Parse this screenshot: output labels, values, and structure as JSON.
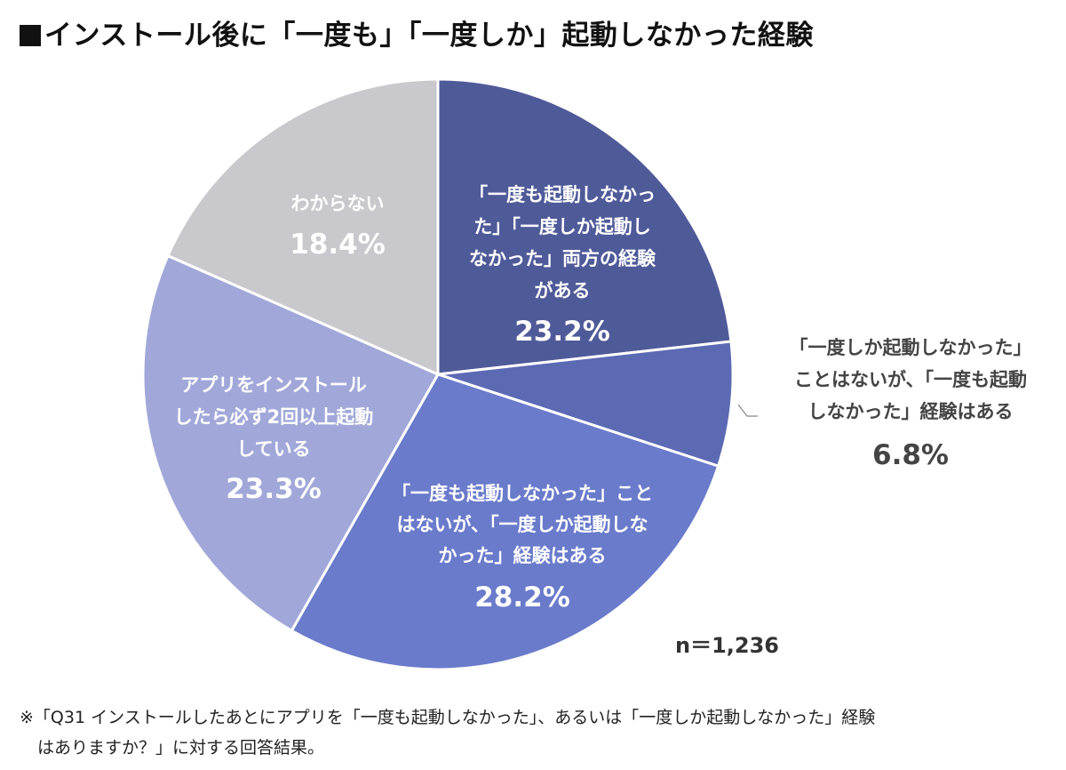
{
  "title": "インストール後に「一度も」「一度しか」起動しなかった経験",
  "sample_size": "n＝1,236",
  "footnote": {
    "line1": "※「Q31 インストールしたあとにアプリを「一度も起動しなかった」、あるいは「一度しか起動しなかった」経験",
    "line2": "はありますか？」に対する回答結果。"
  },
  "colors": {
    "both": "#4f5a99",
    "only_once_never_not": "#5c6ab4",
    "never_not_once": "#6a7bcb",
    "twice_or_more": "#a1a8d9",
    "unknown": "#c9c9cd"
  },
  "chart_data": {
    "type": "pie",
    "title": "インストール後に「一度も」「一度しか」起動しなかった経験",
    "start": "12 o'clock, clockwise",
    "slices": [
      {
        "label": "「一度も起動しなかった」「一度しか起動しなかった」両方の経験がある",
        "label_lines": [
          "「一度も起動しなかっ",
          "た」「一度しか起動し",
          "なかった」両方の経験",
          "がある"
        ],
        "value": 23.2,
        "value_label": "23.2%",
        "color": "#4f5a99",
        "label_position": "inside",
        "text_color": "#ffffff"
      },
      {
        "label": "「一度しか起動しなかった」ことはないが、「一度も起動しなかった」経験はある",
        "label_lines": [
          "「一度しか起動しなかった」",
          "ことはないが、「一度も起動",
          "しなかった」経験はある"
        ],
        "value": 6.8,
        "value_label": "6.8%",
        "color": "#5c6ab4",
        "label_position": "outside",
        "text_color": "#444444"
      },
      {
        "label": "「一度も起動しなかった」ことはないが、「一度しか起動しなかった」経験はある",
        "label_lines": [
          "「一度も起動しなかった」こと",
          "はないが、「一度しか起動しな",
          "かった」経験はある"
        ],
        "value": 28.2,
        "value_label": "28.2%",
        "color": "#6a7bcb",
        "label_position": "inside",
        "text_color": "#ffffff"
      },
      {
        "label": "アプリをインストールしたら必ず2回以上起動している",
        "label_lines": [
          "アプリをインストール",
          "したら必ず2回以上起動",
          "している"
        ],
        "value": 23.3,
        "value_label": "23.3%",
        "color": "#a1a8d9",
        "label_position": "inside",
        "text_color": "#ffffff"
      },
      {
        "label": "わからない",
        "label_lines": [
          "わからない"
        ],
        "value": 18.4,
        "value_label": "18.4%",
        "color": "#c9c9cd",
        "label_position": "inside",
        "text_color": "#ffffff"
      }
    ]
  }
}
